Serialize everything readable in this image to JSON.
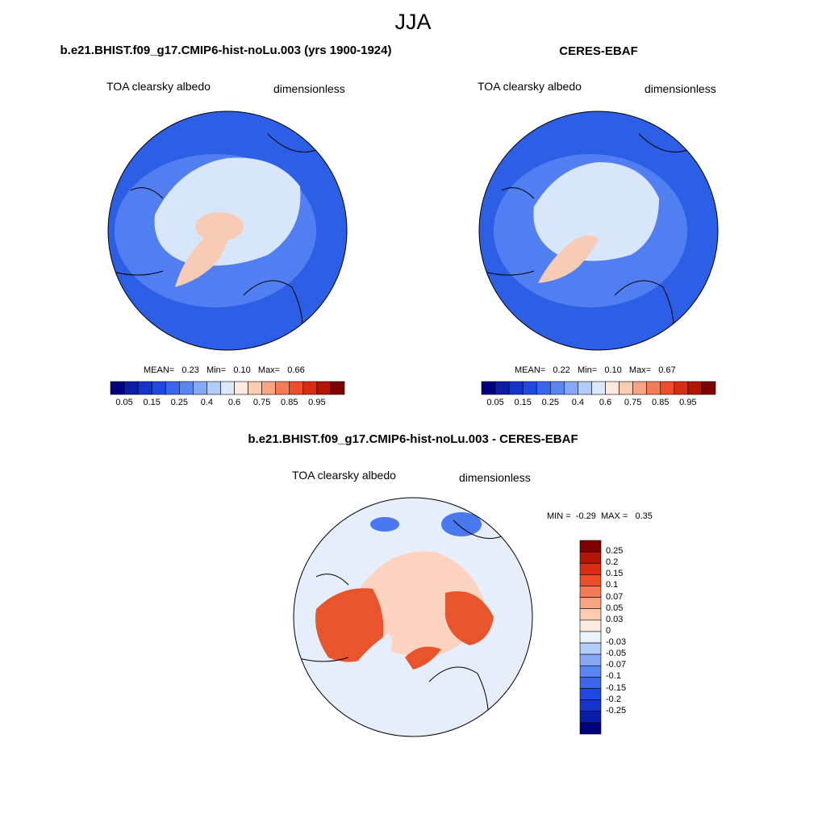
{
  "figure": {
    "season": "JJA"
  },
  "panels": [
    {
      "title": "b.e21.BHIST.f09_g17.CMIP6-hist-noLu.003 (yrs 1900-1924)",
      "variable": "TOA clearsky albedo",
      "units": "dimensionless",
      "stats": {
        "mean_label": "MEAN=",
        "mean": "0.23",
        "min_label": "Min=",
        "min": "0.10",
        "max_label": "Max=",
        "max": "0.66"
      }
    },
    {
      "title": "CERES-EBAF",
      "variable": "TOA clearsky albedo",
      "units": "dimensionless",
      "stats": {
        "mean_label": "MEAN=",
        "mean": "0.22",
        "min_label": "Min=",
        "min": "0.10",
        "max_label": "Max=",
        "max": "0.67"
      }
    },
    {
      "title": "b.e21.BHIST.f09_g17.CMIP6-hist-noLu.003 - CERES-EBAF",
      "variable": "TOA clearsky albedo",
      "units": "dimensionless",
      "stats": {
        "min_label": "MIN =",
        "min": "-0.29",
        "max_label": "MAX =",
        "max": "0.35"
      }
    }
  ],
  "colorbar_abs": {
    "colors": [
      "#00007f",
      "#0a1fa6",
      "#1333c9",
      "#1f4ae0",
      "#3a66ed",
      "#5a86f2",
      "#86a9f5",
      "#b3cbf7",
      "#dce9fa",
      "#fde9dd",
      "#fbcbb2",
      "#f8a482",
      "#f47b55",
      "#ee4f2b",
      "#d82d12",
      "#b31505",
      "#7f0000"
    ],
    "labels": [
      "0.05",
      "0.15",
      "0.25",
      "0.4",
      "0.6",
      "0.75",
      "0.85",
      "0.95"
    ]
  },
  "colorbar_diff": {
    "colors": [
      "#7f0000",
      "#b31505",
      "#d82d12",
      "#ee4f2b",
      "#f47b55",
      "#f8a482",
      "#fbcbb2",
      "#fdebe0",
      "#eaf2fb",
      "#b3cbf7",
      "#86a9f5",
      "#5a86f2",
      "#3a66ed",
      "#1f4ae0",
      "#1333c9",
      "#0a1fa6",
      "#00007f"
    ],
    "labels": [
      "0.25",
      "0.2",
      "0.15",
      "0.1",
      "0.07",
      "0.05",
      "0.03",
      "0",
      "-0.03",
      "-0.05",
      "-0.07",
      "-0.1",
      "-0.15",
      "-0.2",
      "-0.25"
    ]
  },
  "map_colors": {
    "ocean": "#2d5fe6",
    "ocean_mid": "#5a86f2",
    "ice_pale": "#d8e6fb",
    "greenland": "#f7cbb5",
    "diff_bg": "#e7eefb",
    "diff_warm": "#e8542c",
    "diff_pink": "#fbd3bf",
    "diff_blue": "#4a78ee"
  }
}
